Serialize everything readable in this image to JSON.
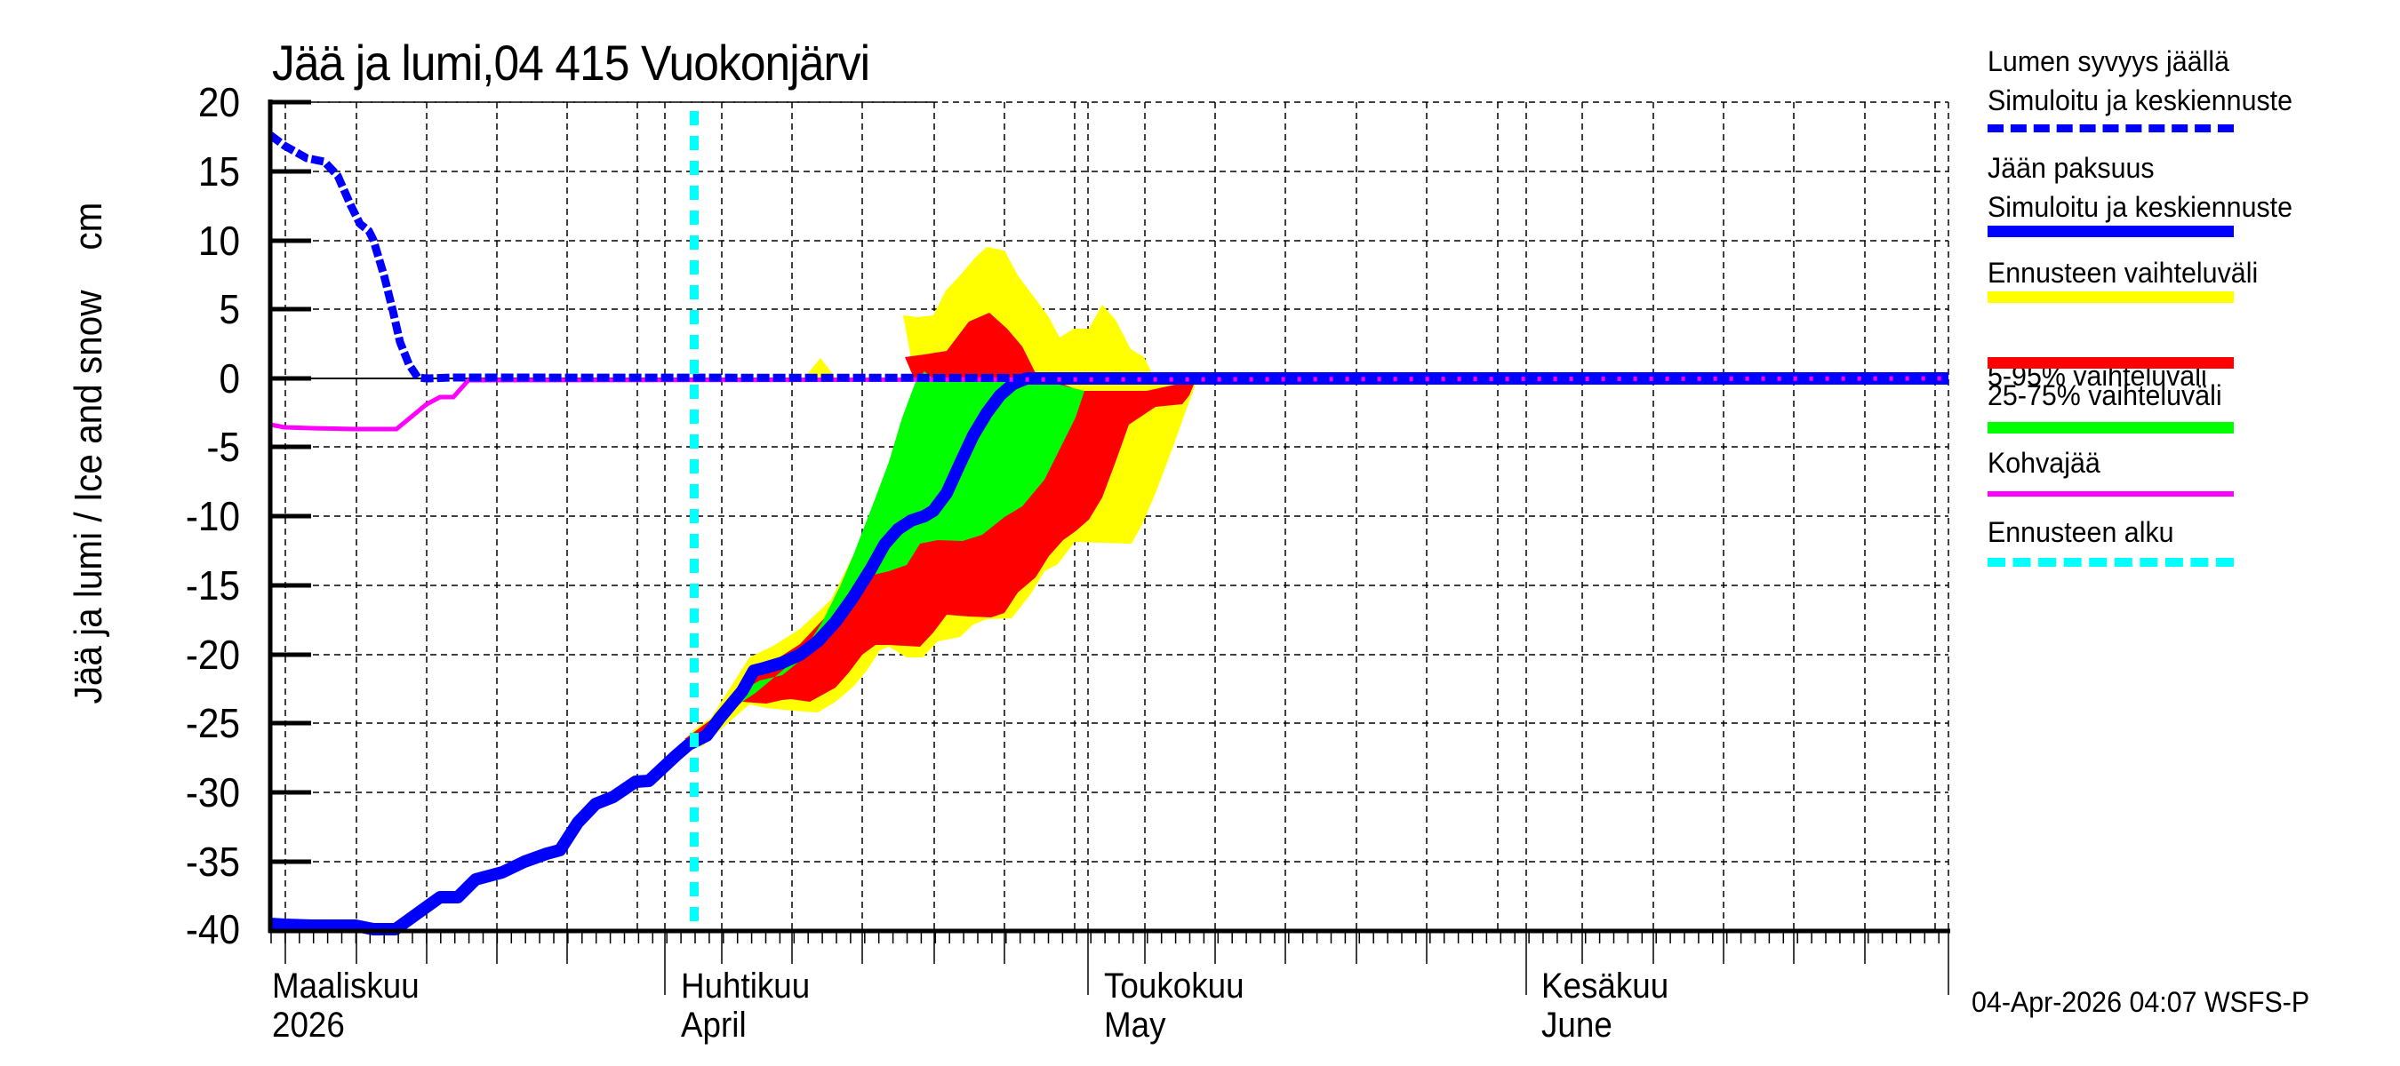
{
  "title": "Jää ja lumi,04 415 Vuokonjärvi",
  "y_axis_label": "Jää ja lumi / Ice and snow    cm",
  "y_ticks": [
    "20",
    "15",
    "10",
    "5",
    "0",
    "-5",
    "-10",
    "-15",
    "-20",
    "-25",
    "-30",
    "-35",
    "-40"
  ],
  "x_month_labels": [
    {
      "fi": "Maaliskuu",
      "en": "2026"
    },
    {
      "fi": "Huhtikuu",
      "en": "April"
    },
    {
      "fi": "Toukokuu",
      "en": "May"
    },
    {
      "fi": "Kesäkuu",
      "en": "June"
    }
  ],
  "legend": {
    "snow_title": "Lumen syvyys jäällä",
    "snow_sub": "Simuloitu ja keskiennuste",
    "ice_title": "Jään paksuus",
    "ice_sub": "Simuloitu ja keskiennuste",
    "range_all": "Ennusteen vaihteluväli",
    "range_5_95": "5-95% vaihteluväli",
    "range_25_75": "25-75% vaihteluväli",
    "slush": "Kohvajää",
    "forecast_start": "Ennusteen alku"
  },
  "footer_stamp": "04-Apr-2026 04:07 WSFS-P",
  "colors": {
    "snow": "#0000ff",
    "ice": "#0000ff",
    "range_all": "#ffff00",
    "range_5_95": "#ff0000",
    "range_25_75": "#00ff00",
    "slush": "#ff00ff",
    "forecast_start": "#00ffff"
  },
  "chart_data": {
    "type": "area",
    "title": "Jää ja lumi,04 415 Vuokonjärvi",
    "xlabel": "",
    "ylabel": "Jää ja lumi / Ice and snow cm",
    "ylim": [
      -40,
      20
    ],
    "xlim": [
      "2026-03-04",
      "2026-07-01"
    ],
    "grid": true,
    "legend_position": "right",
    "forecast_start_date": "2026-04-03",
    "series": [
      {
        "name": "Lumen syvyys jäällä (Simuloitu ja keskiennuste)",
        "style": "dashed",
        "x": [
          "2026-03-04",
          "2026-03-06",
          "2026-03-08",
          "2026-03-10",
          "2026-03-11",
          "2026-03-12",
          "2026-03-13",
          "2026-03-14",
          "2026-03-15",
          "2026-03-16",
          "2026-03-18",
          "2026-03-31",
          "2026-07-01"
        ],
        "values": [
          17.5,
          16.5,
          15.5,
          15.0,
          12.5,
          10.0,
          7.0,
          4.0,
          1.0,
          0,
          0,
          0,
          0
        ]
      },
      {
        "name": "Jään paksuus (Simuloitu ja keskiennuste)",
        "style": "solid",
        "x": [
          "2026-03-04",
          "2026-03-10",
          "2026-03-11",
          "2026-03-13",
          "2026-03-15",
          "2026-03-17",
          "2026-03-20",
          "2026-03-22",
          "2026-03-25",
          "2026-03-27",
          "2026-03-29",
          "2026-03-31",
          "2026-04-03",
          "2026-04-05",
          "2026-04-07",
          "2026-04-09",
          "2026-04-11",
          "2026-04-13",
          "2026-04-15",
          "2026-04-17",
          "2026-04-19",
          "2026-04-21",
          "2026-04-23",
          "2026-04-25",
          "2026-04-27"
        ],
        "values": [
          -39.5,
          -39.8,
          -40.0,
          -40.0,
          -38.0,
          -37.5,
          -35.5,
          -34.5,
          -33.5,
          -31.0,
          -30.0,
          -29.0,
          -26.5,
          -24.5,
          -22.0,
          -21.0,
          -19.5,
          -16.5,
          -13.5,
          -11.0,
          -9.5,
          -6.5,
          -3.0,
          -1.0,
          0
        ]
      },
      {
        "name": "Kohvajää",
        "style": "solid",
        "x": [
          "2026-03-04",
          "2026-03-06",
          "2026-03-13",
          "2026-03-15",
          "2026-03-16",
          "2026-03-17",
          "2026-03-18",
          "2026-07-01"
        ],
        "values": [
          -3.3,
          -3.6,
          -3.7,
          -2.0,
          -1.4,
          -1.4,
          0,
          0
        ]
      },
      {
        "name": "Ennusteen vaihteluväli",
        "type": "band",
        "x": [
          "2026-04-04",
          "2026-04-07",
          "2026-04-10",
          "2026-04-13",
          "2026-04-16",
          "2026-04-19",
          "2026-04-22",
          "2026-04-25",
          "2026-04-28",
          "2026-05-01",
          "2026-05-04",
          "2026-05-07"
        ],
        "upper": [
          -25.0,
          -20.5,
          -17.0,
          -12.0,
          -4.0,
          4.0,
          6.0,
          9.0,
          3.0,
          3.5,
          2.0,
          0
        ],
        "lower": [
          -26.0,
          -24.0,
          -24.0,
          -21.0,
          -19.5,
          -20.0,
          -18.0,
          -17.0,
          -12.0,
          -12.0,
          -8.0,
          0
        ]
      },
      {
        "name": "5-95% vaihteluväli",
        "type": "band",
        "x": [
          "2026-04-04",
          "2026-04-07",
          "2026-04-10",
          "2026-04-13",
          "2026-04-16",
          "2026-04-19",
          "2026-04-22",
          "2026-04-25",
          "2026-04-28",
          "2026-05-01",
          "2026-05-04",
          "2026-05-07"
        ],
        "upper": [
          -25.0,
          -21.0,
          -18.5,
          -14.0,
          -7.5,
          1.5,
          2.0,
          4.0,
          0,
          0,
          0,
          0
        ],
        "lower": [
          -25.8,
          -23.5,
          -23.5,
          -20.0,
          -19.5,
          -17.0,
          -16.5,
          -13.5,
          -8.5,
          -4.0,
          -2.0,
          0
        ]
      },
      {
        "name": "25-75% vaihteluväli",
        "type": "band",
        "x": [
          "2026-04-06",
          "2026-04-09",
          "2026-04-12",
          "2026-04-15",
          "2026-04-18",
          "2026-04-21",
          "2026-04-24",
          "2026-04-27",
          "2026-04-30"
        ],
        "upper": [
          -22.0,
          -21.0,
          -17.0,
          -11.0,
          -5.0,
          0.8,
          0,
          0,
          0
        ],
        "lower": [
          -24.0,
          -22.5,
          -19.5,
          -14.0,
          -11.5,
          -8.0,
          -5.0,
          -2.0,
          0
        ]
      }
    ]
  }
}
